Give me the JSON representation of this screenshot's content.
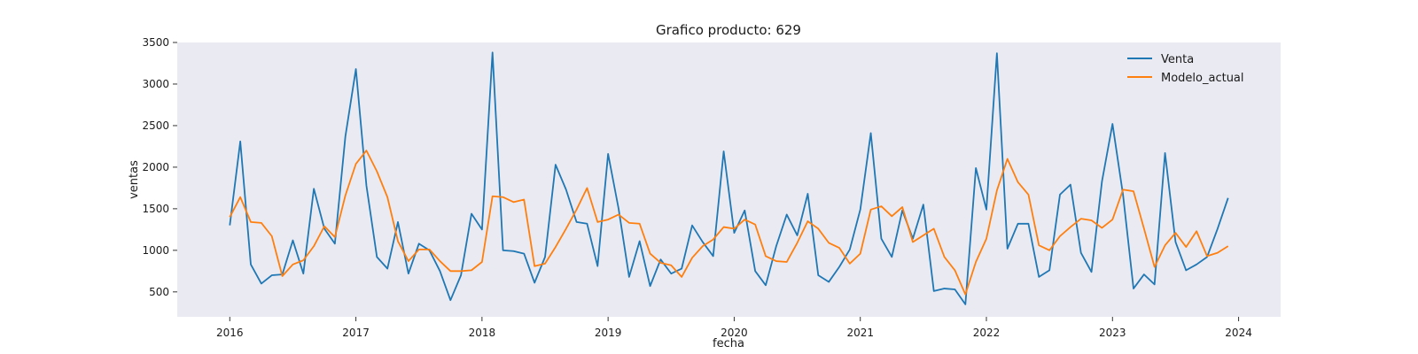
{
  "chart_data": {
    "type": "line",
    "title": "Grafico producto: 629",
    "xlabel": "fecha",
    "ylabel": "ventas",
    "x_start": "2016-01",
    "x_step": "month",
    "x_ticks": [
      "2016",
      "2017",
      "2018",
      "2019",
      "2020",
      "2021",
      "2022",
      "2023",
      "2024"
    ],
    "y_ticks": [
      500,
      1000,
      1500,
      2000,
      2500,
      3000,
      3500
    ],
    "xlim": [
      "2015-08",
      "2024-05"
    ],
    "ylim": [
      200,
      3500
    ],
    "grid": false,
    "legend": "top-right",
    "background": "#eaeaf2",
    "series": [
      {
        "name": "Venta",
        "color": "#1f77b4",
        "values": [
          1300,
          2310,
          830,
          600,
          700,
          710,
          1120,
          720,
          1740,
          1260,
          1080,
          2370,
          3180,
          1780,
          920,
          780,
          1340,
          720,
          1080,
          1000,
          750,
          400,
          700,
          1440,
          1250,
          3380,
          1000,
          990,
          960,
          610,
          920,
          2030,
          1730,
          1340,
          1320,
          810,
          2160,
          1500,
          680,
          1110,
          570,
          890,
          720,
          780,
          1300,
          1100,
          930,
          2190,
          1210,
          1480,
          750,
          580,
          1050,
          1430,
          1180,
          1680,
          700,
          620,
          800,
          1010,
          1490,
          2410,
          1140,
          920,
          1480,
          1140,
          1550,
          510,
          540,
          530,
          350,
          1990,
          1490,
          3370,
          1020,
          1320,
          1320,
          680,
          760,
          1670,
          1790,
          970,
          740,
          1830,
          2520,
          1670,
          540,
          710,
          590,
          2170,
          1100,
          760,
          830,
          920,
          1260,
          1630
        ]
      },
      {
        "name": "Modelo_actual",
        "color": "#ff7f0e",
        "values": [
          1400,
          1640,
          1340,
          1330,
          1170,
          690,
          830,
          880,
          1050,
          1290,
          1160,
          1660,
          2040,
          2200,
          1950,
          1640,
          1110,
          870,
          1010,
          1010,
          870,
          750,
          750,
          760,
          860,
          1650,
          1640,
          1580,
          1610,
          810,
          840,
          1040,
          1260,
          1490,
          1750,
          1340,
          1370,
          1430,
          1330,
          1320,
          960,
          850,
          820,
          680,
          910,
          1050,
          1130,
          1280,
          1260,
          1370,
          1310,
          930,
          870,
          860,
          1090,
          1350,
          1260,
          1090,
          1030,
          840,
          960,
          1490,
          1530,
          1410,
          1520,
          1100,
          1180,
          1260,
          920,
          760,
          470,
          860,
          1140,
          1720,
          2100,
          1820,
          1670,
          1060,
          1000,
          1170,
          1280,
          1380,
          1360,
          1270,
          1370,
          1730,
          1710,
          1260,
          800,
          1060,
          1210,
          1040,
          1230,
          930,
          970,
          1050
        ]
      }
    ]
  }
}
